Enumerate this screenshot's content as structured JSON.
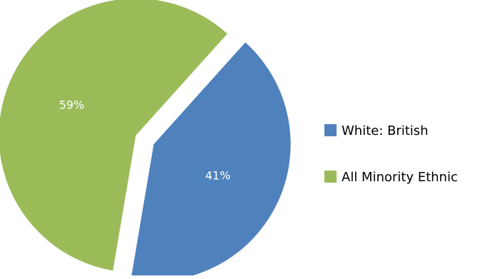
{
  "chart_data": {
    "type": "pie",
    "title": "",
    "categories": [
      "White: British",
      "All Minority Ethnic"
    ],
    "values": [
      41,
      59
    ],
    "value_labels": [
      "41%",
      "59%"
    ],
    "colors": [
      "#4f81bd",
      "#9bbb59"
    ],
    "exploded": true,
    "legend_position": "right"
  }
}
